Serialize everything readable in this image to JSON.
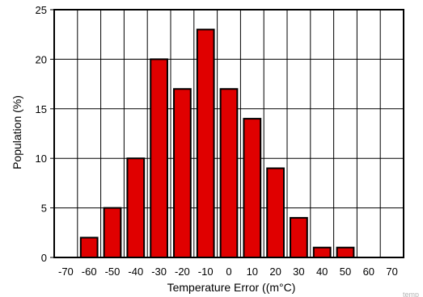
{
  "chart_data": {
    "type": "bar",
    "xlabel": "Temperature Error ((m°C)",
    "ylabel": "Population (%)",
    "x_ticks": [
      "-70",
      "-60",
      "-50",
      "-40",
      "-30",
      "-20",
      "-10",
      "0",
      "10",
      "20",
      "30",
      "40",
      "50",
      "60",
      "70"
    ],
    "y_ticks": [
      "0",
      "5",
      "10",
      "15",
      "20",
      "25"
    ],
    "ylim": [
      0,
      25
    ],
    "xlim": [
      -75,
      75
    ],
    "grid": true,
    "bar_color": "#e00000",
    "categories": [
      "-60",
      "-50",
      "-40",
      "-30",
      "-20",
      "-10",
      "0",
      "10",
      "20",
      "30",
      "40",
      "50"
    ],
    "x": [
      -60,
      -50,
      -40,
      -30,
      -20,
      -10,
      0,
      10,
      20,
      30,
      40,
      50
    ],
    "values": [
      2,
      5,
      10,
      20,
      17,
      23,
      17,
      14,
      9,
      4,
      1,
      1
    ]
  },
  "watermark": "temp"
}
